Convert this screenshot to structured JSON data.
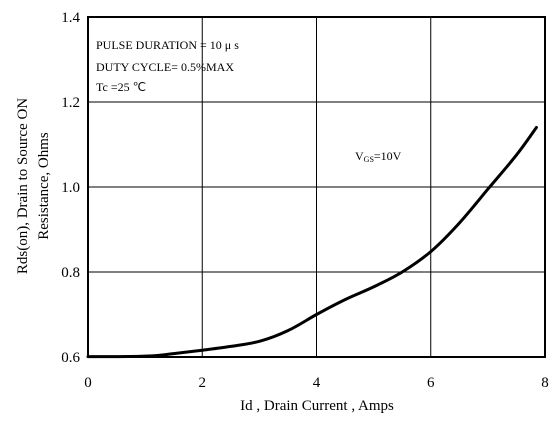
{
  "chart_data": {
    "type": "line",
    "xlabel": "Id , Drain Current , Amps",
    "ylabel_lines": [
      "Rds(on), Drain to Source ON",
      "Resistance, Ohms"
    ],
    "xlim": [
      0,
      8
    ],
    "ylim": [
      0.6,
      1.4
    ],
    "x_ticks": [
      0,
      2,
      4,
      6,
      8
    ],
    "x_tick_labels": [
      "0",
      "2",
      "4",
      "6",
      "8"
    ],
    "y_ticks": [
      0.6,
      0.8,
      1.0,
      1.2,
      1.4
    ],
    "y_tick_labels": [
      "0.6",
      "0.8",
      "1.0",
      "1.2",
      "1.4"
    ],
    "grid": true,
    "annotations": {
      "pulse": "PULSE   DURATION = 10 μ s",
      "duty": "DUTY   CYCLE= 0.5%MAX",
      "temp": "Tc =25 ℃"
    },
    "series_label": {
      "main": "V",
      "sub": "GS",
      "tail": "=10V"
    },
    "series": [
      {
        "x": [
          0,
          0.5,
          1.0,
          1.25,
          1.5,
          2.0,
          2.5,
          3.0,
          3.5,
          4.0,
          4.5,
          5.0,
          5.5,
          6.0,
          6.5,
          7.0,
          7.5,
          7.85
        ],
        "y": [
          0.601,
          0.601,
          0.602,
          0.604,
          0.608,
          0.616,
          0.625,
          0.637,
          0.662,
          0.7,
          0.735,
          0.765,
          0.8,
          0.848,
          0.915,
          0.995,
          1.075,
          1.14
        ]
      }
    ]
  }
}
